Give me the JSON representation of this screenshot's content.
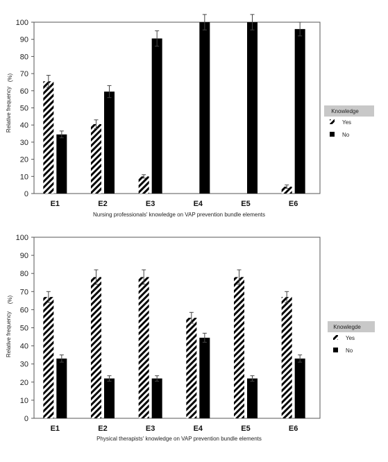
{
  "chart_data": [
    {
      "type": "bar",
      "categories": [
        "E1",
        "E2",
        "E3",
        "E4",
        "E5",
        "E6"
      ],
      "series": [
        {
          "name": "Yes",
          "values": [
            65.5,
            40.5,
            10,
            0,
            0,
            4
          ],
          "errors": [
            3.5,
            2.5,
            1,
            0,
            0,
            1
          ],
          "pattern": "hatch"
        },
        {
          "name": "No",
          "values": [
            34.5,
            59.5,
            90.5,
            100,
            100,
            96
          ],
          "errors": [
            2,
            3.5,
            4.5,
            4.5,
            4.5,
            4
          ],
          "pattern": "solid"
        }
      ],
      "xlabel": "Nursing professionals' knowledge on VAP prevention bundle elements",
      "ylabel": "Relative frequency",
      "ylabel_unit": "(%)",
      "ylim": [
        0,
        100
      ],
      "yticks": [
        0,
        10,
        20,
        30,
        40,
        50,
        60,
        70,
        80,
        90,
        100
      ],
      "legend_title": "Knowledge",
      "legend_position": "right",
      "grid": false
    },
    {
      "type": "bar",
      "categories": [
        "E1",
        "E2",
        "E3",
        "E4",
        "E5",
        "E6"
      ],
      "series": [
        {
          "name": "Yes",
          "values": [
            67,
            78,
            78,
            55.5,
            78,
            67
          ],
          "errors": [
            3,
            4,
            4,
            3,
            4,
            3
          ],
          "pattern": "hatch"
        },
        {
          "name": "No",
          "values": [
            33,
            22,
            22,
            44.5,
            22,
            33
          ],
          "errors": [
            2,
            1.5,
            1.5,
            2.5,
            1.5,
            2
          ],
          "pattern": "solid"
        }
      ],
      "xlabel": "Physical therapists' knowledge on VAP prevention bundle elements",
      "ylabel": "Relative frequency",
      "ylabel_unit": "(%)",
      "ylim": [
        0,
        100
      ],
      "yticks": [
        0,
        10,
        20,
        30,
        40,
        50,
        60,
        70,
        80,
        90,
        100
      ],
      "legend_title": "Knowlegde",
      "legend_position": "right",
      "grid": false
    }
  ],
  "colors": {
    "bar": "#000000",
    "legend_header": "#c8c8c8",
    "frame": "#555555"
  }
}
